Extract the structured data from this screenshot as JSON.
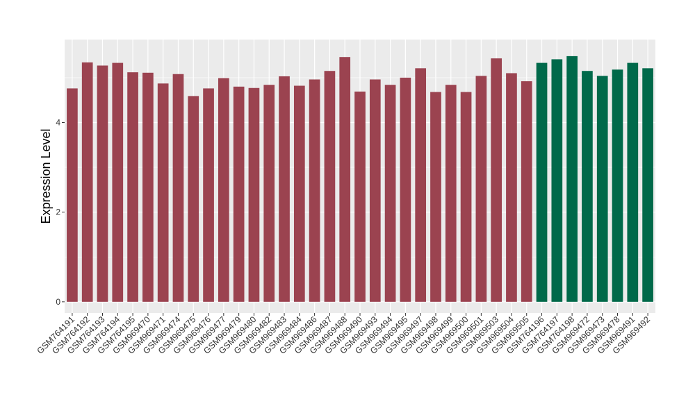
{
  "chart_data": {
    "type": "bar",
    "title": "",
    "xlabel": "",
    "ylabel": "Expression Level",
    "ylim": [
      -0.25,
      5.85
    ],
    "yticks": [
      0,
      2,
      4
    ],
    "grid": true,
    "legend": "none",
    "colors": {
      "group_a": "#9b4350",
      "group_b": "#00694a",
      "panel": "#ebebeb",
      "gridline": "#ffffff",
      "tick_text": "#333333"
    },
    "categories": [
      "GSM764191",
      "GSM764192",
      "GSM764193",
      "GSM764194",
      "GSM764195",
      "GSM969470",
      "GSM969471",
      "GSM969474",
      "GSM969475",
      "GSM969476",
      "GSM969477",
      "GSM969479",
      "GSM969480",
      "GSM969482",
      "GSM969483",
      "GSM969484",
      "GSM969486",
      "GSM969487",
      "GSM969488",
      "GSM969490",
      "GSM969493",
      "GSM969494",
      "GSM969495",
      "GSM969497",
      "GSM969498",
      "GSM969499",
      "GSM969500",
      "GSM969501",
      "GSM969503",
      "GSM969504",
      "GSM969505",
      "GSM764196",
      "GSM764197",
      "GSM764198",
      "GSM969472",
      "GSM969473",
      "GSM969478",
      "GSM969491",
      "GSM969492"
    ],
    "values": [
      4.76,
      5.34,
      5.27,
      5.33,
      5.12,
      5.11,
      4.87,
      5.08,
      4.59,
      4.76,
      4.99,
      4.8,
      4.77,
      4.84,
      5.03,
      4.82,
      4.96,
      5.15,
      5.46,
      4.69,
      4.96,
      4.84,
      5.0,
      5.21,
      4.68,
      4.84,
      4.68,
      5.04,
      5.43,
      5.1,
      4.92,
      5.33,
      5.41,
      5.48,
      5.15,
      5.04,
      5.18,
      5.33,
      5.21
    ],
    "groups": [
      "a",
      "a",
      "a",
      "a",
      "a",
      "a",
      "a",
      "a",
      "a",
      "a",
      "a",
      "a",
      "a",
      "a",
      "a",
      "a",
      "a",
      "a",
      "a",
      "a",
      "a",
      "a",
      "a",
      "a",
      "a",
      "a",
      "a",
      "a",
      "a",
      "a",
      "a",
      "b",
      "b",
      "b",
      "b",
      "b",
      "b",
      "b",
      "b"
    ]
  }
}
